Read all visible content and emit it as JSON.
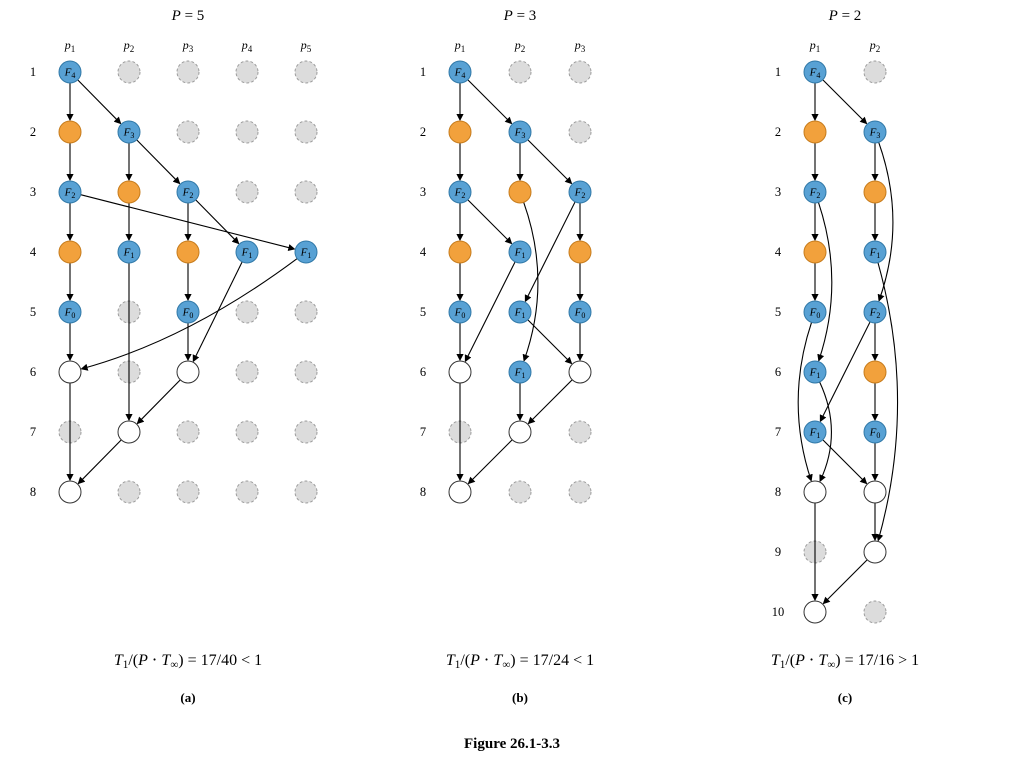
{
  "figure_caption": "Figure 26.1-3.3",
  "colors": {
    "strand_blue": "#58a1d4",
    "strand_blue_border": "#3179a8",
    "strand_orange": "#f2a13c",
    "strand_orange_border": "#c77c1c",
    "merge_white": "#ffffff",
    "merge_border": "#333333",
    "idle_fill": "#dcdcdc",
    "idle_stroke": "#9c9c9c",
    "edge": "#000000"
  },
  "panels": [
    {
      "key": "a",
      "title_segments": [
        [
          "it",
          "P"
        ],
        [
          "txt",
          " = 5"
        ]
      ],
      "processors": [
        "p1",
        "p2",
        "p3",
        "p4",
        "p5"
      ],
      "row_labels": [
        "1",
        "2",
        "3",
        "4",
        "5",
        "6",
        "7",
        "8"
      ],
      "caption_segments": [
        [
          "it",
          "T"
        ],
        [
          "sub",
          "1"
        ],
        [
          "txt",
          "/("
        ],
        [
          "it",
          "P"
        ],
        [
          "txt",
          " ⋅ "
        ],
        [
          "it",
          "T"
        ],
        [
          "sub",
          "∞"
        ],
        [
          "txt",
          ") = 17/40 < 1"
        ]
      ],
      "sublabel": "(a)",
      "nodes": [
        {
          "r": 1,
          "c": 1,
          "type": "blue",
          "label": "F4"
        },
        {
          "r": 2,
          "c": 1,
          "type": "orange"
        },
        {
          "r": 2,
          "c": 2,
          "type": "blue",
          "label": "F3"
        },
        {
          "r": 3,
          "c": 1,
          "type": "blue",
          "label": "F2"
        },
        {
          "r": 3,
          "c": 2,
          "type": "orange"
        },
        {
          "r": 3,
          "c": 3,
          "type": "blue",
          "label": "F2"
        },
        {
          "r": 4,
          "c": 1,
          "type": "orange"
        },
        {
          "r": 4,
          "c": 2,
          "type": "blue",
          "label": "F1"
        },
        {
          "r": 4,
          "c": 3,
          "type": "orange"
        },
        {
          "r": 4,
          "c": 4,
          "type": "blue",
          "label": "F1"
        },
        {
          "r": 4,
          "c": 5,
          "type": "blue",
          "label": "F1"
        },
        {
          "r": 5,
          "c": 1,
          "type": "blue",
          "label": "F0"
        },
        {
          "r": 5,
          "c": 3,
          "type": "blue",
          "label": "F0"
        },
        {
          "r": 6,
          "c": 1,
          "type": "white"
        },
        {
          "r": 6,
          "c": 3,
          "type": "white"
        },
        {
          "r": 7,
          "c": 2,
          "type": "white"
        },
        {
          "r": 8,
          "c": 1,
          "type": "white"
        }
      ],
      "edges": [
        {
          "f": [
            1,
            1
          ],
          "t": [
            2,
            1
          ]
        },
        {
          "f": [
            1,
            1
          ],
          "t": [
            2,
            2
          ]
        },
        {
          "f": [
            2,
            1
          ],
          "t": [
            3,
            1
          ]
        },
        {
          "f": [
            2,
            2
          ],
          "t": [
            3,
            2
          ]
        },
        {
          "f": [
            2,
            2
          ],
          "t": [
            3,
            3
          ]
        },
        {
          "f": [
            3,
            1
          ],
          "t": [
            4,
            1
          ]
        },
        {
          "f": [
            3,
            1
          ],
          "t": [
            4,
            5
          ]
        },
        {
          "f": [
            3,
            2
          ],
          "t": [
            4,
            2
          ]
        },
        {
          "f": [
            3,
            3
          ],
          "t": [
            4,
            3
          ]
        },
        {
          "f": [
            3,
            3
          ],
          "t": [
            4,
            4
          ]
        },
        {
          "f": [
            4,
            1
          ],
          "t": [
            5,
            1
          ]
        },
        {
          "f": [
            4,
            3
          ],
          "t": [
            5,
            3
          ]
        },
        {
          "f": [
            4,
            5
          ],
          "t": [
            6,
            1
          ],
          "cp": [
            0,
            28
          ]
        },
        {
          "f": [
            5,
            1
          ],
          "t": [
            6,
            1
          ]
        },
        {
          "f": [
            4,
            4
          ],
          "t": [
            6,
            3
          ]
        },
        {
          "f": [
            5,
            3
          ],
          "t": [
            6,
            3
          ]
        },
        {
          "f": [
            4,
            2
          ],
          "t": [
            7,
            2
          ]
        },
        {
          "f": [
            6,
            3
          ],
          "t": [
            7,
            2
          ]
        },
        {
          "f": [
            6,
            1
          ],
          "t": [
            8,
            1
          ]
        },
        {
          "f": [
            7,
            2
          ],
          "t": [
            8,
            1
          ]
        }
      ]
    },
    {
      "key": "b",
      "title_segments": [
        [
          "it",
          "P"
        ],
        [
          "txt",
          " = 3"
        ]
      ],
      "processors": [
        "p1",
        "p2",
        "p3"
      ],
      "row_labels": [
        "1",
        "2",
        "3",
        "4",
        "5",
        "6",
        "7",
        "8"
      ],
      "caption_segments": [
        [
          "it",
          "T"
        ],
        [
          "sub",
          "1"
        ],
        [
          "txt",
          "/("
        ],
        [
          "it",
          "P"
        ],
        [
          "txt",
          " ⋅ "
        ],
        [
          "it",
          "T"
        ],
        [
          "sub",
          "∞"
        ],
        [
          "txt",
          ") = 17/24 < 1"
        ]
      ],
      "sublabel": "(b)",
      "nodes": [
        {
          "r": 1,
          "c": 1,
          "type": "blue",
          "label": "F4"
        },
        {
          "r": 2,
          "c": 1,
          "type": "orange"
        },
        {
          "r": 2,
          "c": 2,
          "type": "blue",
          "label": "F3"
        },
        {
          "r": 3,
          "c": 1,
          "type": "blue",
          "label": "F2"
        },
        {
          "r": 3,
          "c": 2,
          "type": "orange"
        },
        {
          "r": 3,
          "c": 3,
          "type": "blue",
          "label": "F2"
        },
        {
          "r": 4,
          "c": 1,
          "type": "orange"
        },
        {
          "r": 4,
          "c": 2,
          "type": "blue",
          "label": "F1"
        },
        {
          "r": 4,
          "c": 3,
          "type": "orange"
        },
        {
          "r": 5,
          "c": 1,
          "type": "blue",
          "label": "F0"
        },
        {
          "r": 5,
          "c": 2,
          "type": "blue",
          "label": "F1"
        },
        {
          "r": 5,
          "c": 3,
          "type": "blue",
          "label": "F0"
        },
        {
          "r": 6,
          "c": 1,
          "type": "white"
        },
        {
          "r": 6,
          "c": 2,
          "type": "blue",
          "label": "F1"
        },
        {
          "r": 6,
          "c": 3,
          "type": "white"
        },
        {
          "r": 7,
          "c": 2,
          "type": "white"
        },
        {
          "r": 8,
          "c": 1,
          "type": "white"
        }
      ],
      "edges": [
        {
          "f": [
            1,
            1
          ],
          "t": [
            2,
            1
          ]
        },
        {
          "f": [
            1,
            1
          ],
          "t": [
            2,
            2
          ]
        },
        {
          "f": [
            2,
            1
          ],
          "t": [
            3,
            1
          ]
        },
        {
          "f": [
            2,
            2
          ],
          "t": [
            3,
            2
          ]
        },
        {
          "f": [
            2,
            2
          ],
          "t": [
            3,
            3
          ]
        },
        {
          "f": [
            3,
            1
          ],
          "t": [
            4,
            1
          ]
        },
        {
          "f": [
            3,
            1
          ],
          "t": [
            4,
            2
          ]
        },
        {
          "f": [
            3,
            2
          ],
          "t": [
            6,
            2
          ],
          "cp": [
            32,
            0
          ]
        },
        {
          "f": [
            3,
            3
          ],
          "t": [
            4,
            3
          ]
        },
        {
          "f": [
            3,
            3
          ],
          "t": [
            5,
            2
          ]
        },
        {
          "f": [
            4,
            1
          ],
          "t": [
            5,
            1
          ]
        },
        {
          "f": [
            4,
            3
          ],
          "t": [
            5,
            3
          ]
        },
        {
          "f": [
            4,
            2
          ],
          "t": [
            6,
            1
          ]
        },
        {
          "f": [
            5,
            1
          ],
          "t": [
            6,
            1
          ]
        },
        {
          "f": [
            5,
            2
          ],
          "t": [
            6,
            3
          ]
        },
        {
          "f": [
            5,
            3
          ],
          "t": [
            6,
            3
          ]
        },
        {
          "f": [
            6,
            2
          ],
          "t": [
            7,
            2
          ]
        },
        {
          "f": [
            6,
            3
          ],
          "t": [
            7,
            2
          ]
        },
        {
          "f": [
            6,
            1
          ],
          "t": [
            8,
            1
          ]
        },
        {
          "f": [
            7,
            2
          ],
          "t": [
            8,
            1
          ]
        }
      ]
    },
    {
      "key": "c",
      "title_segments": [
        [
          "it",
          "P"
        ],
        [
          "txt",
          " = 2"
        ]
      ],
      "processors": [
        "p1",
        "p2"
      ],
      "row_labels": [
        "1",
        "2",
        "3",
        "4",
        "5",
        "6",
        "7",
        "8",
        "9",
        "10"
      ],
      "caption_segments": [
        [
          "it",
          "T"
        ],
        [
          "sub",
          "1"
        ],
        [
          "txt",
          "/("
        ],
        [
          "it",
          "P"
        ],
        [
          "txt",
          " ⋅ "
        ],
        [
          "it",
          "T"
        ],
        [
          "sub",
          "∞"
        ],
        [
          "txt",
          ") = 17/16 > 1"
        ]
      ],
      "sublabel": "(c)",
      "nodes": [
        {
          "r": 1,
          "c": 1,
          "type": "blue",
          "label": "F4"
        },
        {
          "r": 2,
          "c": 1,
          "type": "orange"
        },
        {
          "r": 2,
          "c": 2,
          "type": "blue",
          "label": "F3"
        },
        {
          "r": 3,
          "c": 1,
          "type": "blue",
          "label": "F2"
        },
        {
          "r": 3,
          "c": 2,
          "type": "orange"
        },
        {
          "r": 4,
          "c": 1,
          "type": "orange"
        },
        {
          "r": 4,
          "c": 2,
          "type": "blue",
          "label": "F1"
        },
        {
          "r": 5,
          "c": 1,
          "type": "blue",
          "label": "F0"
        },
        {
          "r": 5,
          "c": 2,
          "type": "blue",
          "label": "F2"
        },
        {
          "r": 6,
          "c": 1,
          "type": "blue",
          "label": "F1"
        },
        {
          "r": 6,
          "c": 2,
          "type": "orange"
        },
        {
          "r": 7,
          "c": 1,
          "type": "blue",
          "label": "F1"
        },
        {
          "r": 7,
          "c": 2,
          "type": "blue",
          "label": "F0"
        },
        {
          "r": 8,
          "c": 1,
          "type": "white"
        },
        {
          "r": 8,
          "c": 2,
          "type": "white"
        },
        {
          "r": 9,
          "c": 2,
          "type": "white"
        },
        {
          "r": 10,
          "c": 1,
          "type": "white"
        }
      ],
      "edges": [
        {
          "f": [
            1,
            1
          ],
          "t": [
            2,
            1
          ]
        },
        {
          "f": [
            1,
            1
          ],
          "t": [
            2,
            2
          ]
        },
        {
          "f": [
            2,
            1
          ],
          "t": [
            3,
            1
          ]
        },
        {
          "f": [
            2,
            2
          ],
          "t": [
            3,
            2
          ]
        },
        {
          "f": [
            2,
            2
          ],
          "t": [
            5,
            2
          ],
          "cp": [
            32,
            0
          ]
        },
        {
          "f": [
            3,
            1
          ],
          "t": [
            4,
            1
          ]
        },
        {
          "f": [
            3,
            1
          ],
          "t": [
            6,
            1
          ],
          "cp": [
            30,
            0
          ]
        },
        {
          "f": [
            3,
            2
          ],
          "t": [
            4,
            2
          ]
        },
        {
          "f": [
            4,
            1
          ],
          "t": [
            5,
            1
          ]
        },
        {
          "f": [
            4,
            2
          ],
          "t": [
            9,
            2
          ],
          "cp": [
            42,
            0
          ]
        },
        {
          "f": [
            5,
            1
          ],
          "t": [
            8,
            1
          ],
          "cp": [
            -30,
            0
          ]
        },
        {
          "f": [
            5,
            2
          ],
          "t": [
            6,
            2
          ]
        },
        {
          "f": [
            5,
            2
          ],
          "t": [
            7,
            1
          ]
        },
        {
          "f": [
            6,
            1
          ],
          "t": [
            8,
            1
          ],
          "cp": [
            28,
            0
          ]
        },
        {
          "f": [
            6,
            2
          ],
          "t": [
            7,
            2
          ]
        },
        {
          "f": [
            7,
            1
          ],
          "t": [
            8,
            2
          ]
        },
        {
          "f": [
            7,
            2
          ],
          "t": [
            8,
            2
          ]
        },
        {
          "f": [
            8,
            2
          ],
          "t": [
            9,
            2
          ]
        },
        {
          "f": [
            8,
            1
          ],
          "t": [
            10,
            1
          ]
        },
        {
          "f": [
            9,
            2
          ],
          "t": [
            10,
            1
          ]
        }
      ]
    }
  ]
}
